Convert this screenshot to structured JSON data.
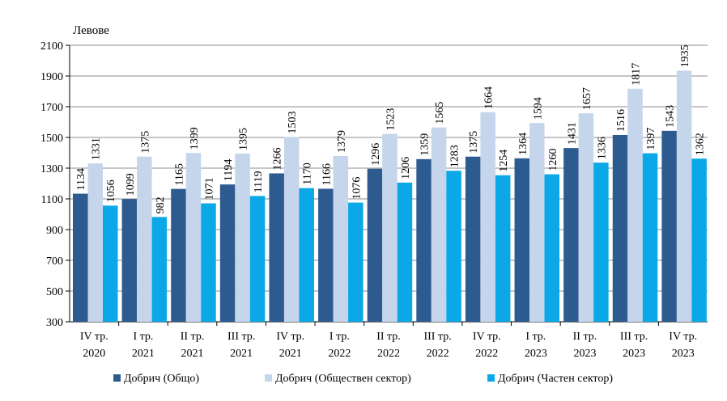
{
  "chart_data": {
    "type": "bar",
    "ylabel": "Левове",
    "ylim": [
      300,
      2100
    ],
    "yticks": [
      300,
      500,
      700,
      900,
      1100,
      1300,
      1500,
      1700,
      1900,
      2100
    ],
    "grid": true,
    "legend_position": "bottom",
    "categories": [
      [
        "IV тр.",
        "2020"
      ],
      [
        "I тр.",
        "2021"
      ],
      [
        "II тр.",
        "2021"
      ],
      [
        "III тр.",
        "2021"
      ],
      [
        "IV тр.",
        "2021"
      ],
      [
        "I тр.",
        "2022"
      ],
      [
        "II тр.",
        "2022"
      ],
      [
        "III тр.",
        "2022"
      ],
      [
        "IV тр.",
        "2022"
      ],
      [
        "I тр.",
        "2023"
      ],
      [
        "II тр.",
        "2023"
      ],
      [
        "III тр.",
        "2023"
      ],
      [
        "IV тр.",
        "2023"
      ]
    ],
    "series": [
      {
        "name": "Добрич (Общо)",
        "color": "#2e5b8f",
        "values": [
          1134,
          1099,
          1165,
          1194,
          1266,
          1166,
          1296,
          1359,
          1375,
          1364,
          1431,
          1516,
          1543
        ]
      },
      {
        "name": "Добрич (Обществен сектор)",
        "color": "#c5d5ec",
        "values": [
          1331,
          1375,
          1399,
          1395,
          1503,
          1379,
          1523,
          1565,
          1664,
          1594,
          1657,
          1817,
          1935
        ]
      },
      {
        "name": "Добрич (Частен сектор)",
        "color": "#0aa8e6",
        "values": [
          1056,
          982,
          1071,
          1119,
          1170,
          1076,
          1206,
          1283,
          1254,
          1260,
          1336,
          1397,
          1362
        ]
      }
    ]
  }
}
